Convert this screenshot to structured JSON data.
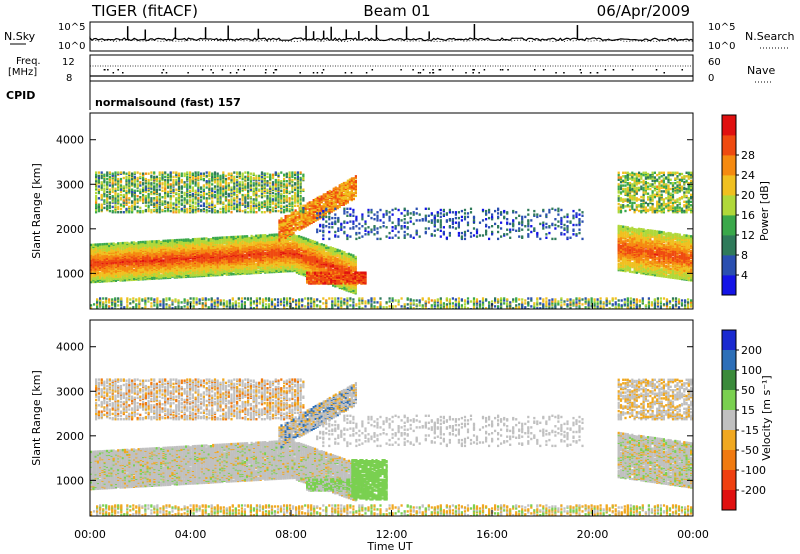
{
  "header": {
    "station": "TIGER (fitACF)",
    "beam": "Beam 01",
    "date": "06/Apr/2009"
  },
  "top_panels": {
    "nsky_label": "N.Sky",
    "nsearch_label": "N.Search",
    "noise_ticks": [
      "10^5",
      "10^0"
    ],
    "freq_label_1": "Freq.",
    "freq_label_2": "[MHz]",
    "freq_ticks": [
      "12",
      "8"
    ],
    "nave_label": "Nave",
    "nave_ticks": [
      "60",
      "0"
    ],
    "cpid_label": "CPID",
    "cpid_text": "normalsound (fast) 157"
  },
  "chart_data": [
    {
      "type": "heatmap",
      "name": "power",
      "xlabel": "Time UT",
      "ylabel": "Slant Range [km]",
      "xlim": [
        0,
        24
      ],
      "ylim": [
        200,
        4600
      ],
      "x_ticks": [
        "00:00",
        "04:00",
        "08:00",
        "12:00",
        "16:00",
        "20:00",
        "00:00"
      ],
      "y_ticks": [
        "1000",
        "2000",
        "3000",
        "4000"
      ],
      "colorbar": {
        "label": "Power [dB]",
        "min": 0,
        "max": 32,
        "ticks": [
          "4",
          "8",
          "12",
          "16",
          "20",
          "24",
          "28"
        ],
        "colors": [
          "#1414e6",
          "#2a4fb0",
          "#2f7a5a",
          "#3aa84a",
          "#b0d83a",
          "#f0c020",
          "#f58a10",
          "#ef4a10",
          "#e01010"
        ]
      },
      "regions": [
        {
          "desc": "main band",
          "t_start": 0,
          "t_end": 10.5,
          "r_start": 900,
          "r_end": 1700,
          "level": 28
        },
        {
          "desc": "upper band",
          "t_start": 0,
          "t_end": 8.5,
          "r_start": 2400,
          "r_end": 3300,
          "level": 14
        },
        {
          "desc": "mid scatter",
          "t_start": 9,
          "t_end": 19.5,
          "r_start": 1800,
          "r_end": 2500,
          "level": 6
        },
        {
          "desc": "late band",
          "t_start": 21,
          "t_end": 24,
          "r_start": 1000,
          "r_end": 2000,
          "level": 26
        },
        {
          "desc": "late upper",
          "t_start": 21,
          "t_end": 24,
          "r_start": 2400,
          "r_end": 3300,
          "level": 14
        },
        {
          "desc": "ground scatter floor",
          "t_start": 0,
          "t_end": 24,
          "r_start": 200,
          "r_end": 500,
          "level": 10
        }
      ]
    },
    {
      "type": "heatmap",
      "name": "velocity",
      "xlabel": "Time UT",
      "ylabel": "Slant Range [km]",
      "xlim": [
        0,
        24
      ],
      "ylim": [
        200,
        4600
      ],
      "x_ticks": [
        "00:00",
        "04:00",
        "08:00",
        "12:00",
        "16:00",
        "20:00",
        "00:00"
      ],
      "y_ticks": [
        "1000",
        "2000",
        "3000",
        "4000"
      ],
      "colorbar": {
        "label": "Velocity [m s⁻¹]",
        "ticks": [
          "200",
          "100",
          "50",
          "15",
          "-15",
          "-50",
          "-100",
          "-200"
        ],
        "colors": [
          "#1a2ad0",
          "#2d6fb8",
          "#3a8a3a",
          "#7ad050",
          "#c0c0c0",
          "#f0a820",
          "#f07a10",
          "#ef4010",
          "#e01010"
        ]
      }
    }
  ]
}
